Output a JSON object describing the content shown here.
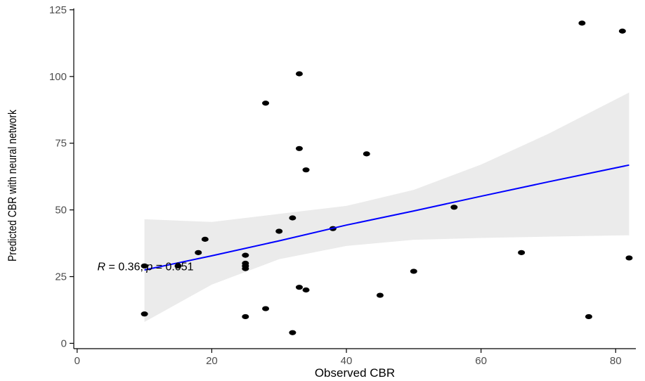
{
  "chart_data": {
    "type": "scatter",
    "xlabel": "Observed CBR",
    "ylabel": "Predicted CBR with neural network",
    "xlim": [
      -0.5,
      83
    ],
    "ylim": [
      -2,
      125.5
    ],
    "xticks": [
      0,
      20,
      40,
      60,
      80
    ],
    "yticks": [
      0,
      25,
      50,
      75,
      100,
      125
    ],
    "grid": false,
    "points": [
      {
        "x": 10,
        "y": 11
      },
      {
        "x": 10,
        "y": 29
      },
      {
        "x": 15,
        "y": 29
      },
      {
        "x": 18,
        "y": 34
      },
      {
        "x": 19,
        "y": 39
      },
      {
        "x": 25,
        "y": 10
      },
      {
        "x": 25,
        "y": 28
      },
      {
        "x": 25,
        "y": 29
      },
      {
        "x": 25,
        "y": 30
      },
      {
        "x": 25,
        "y": 33
      },
      {
        "x": 28,
        "y": 13
      },
      {
        "x": 28,
        "y": 90
      },
      {
        "x": 30,
        "y": 42
      },
      {
        "x": 32,
        "y": 4
      },
      {
        "x": 32,
        "y": 47
      },
      {
        "x": 33,
        "y": 21
      },
      {
        "x": 33,
        "y": 73
      },
      {
        "x": 33,
        "y": 101
      },
      {
        "x": 34,
        "y": 20
      },
      {
        "x": 34,
        "y": 65
      },
      {
        "x": 38,
        "y": 43
      },
      {
        "x": 43,
        "y": 71
      },
      {
        "x": 45,
        "y": 18
      },
      {
        "x": 50,
        "y": 27
      },
      {
        "x": 56,
        "y": 51
      },
      {
        "x": 66,
        "y": 34
      },
      {
        "x": 75,
        "y": 120
      },
      {
        "x": 76,
        "y": 10
      },
      {
        "x": 81,
        "y": 117
      },
      {
        "x": 82,
        "y": 32
      }
    ],
    "regression": {
      "x": [
        10,
        20,
        30,
        40,
        50,
        60,
        70,
        82
      ],
      "fit": [
        27.5,
        32.8,
        38.4,
        44.3,
        49.6,
        55.1,
        60.5,
        66.8
      ],
      "lower": [
        8,
        22,
        31.5,
        36.5,
        38.8,
        39.5,
        40,
        40.5
      ],
      "upper": [
        46.5,
        45.5,
        48.5,
        51.5,
        57.5,
        67,
        78.5,
        94
      ]
    },
    "annotation": {
      "r_label": "R",
      "r_text": " = 0.36, ",
      "p_label": "p",
      "p_text": " = 0.051",
      "x": 3,
      "y": 29
    },
    "colors": {
      "points": "#000000",
      "line": "#0000ff",
      "band": "#ebebeb",
      "axis": "#000000",
      "tick_label": "#4d4d4d"
    }
  }
}
